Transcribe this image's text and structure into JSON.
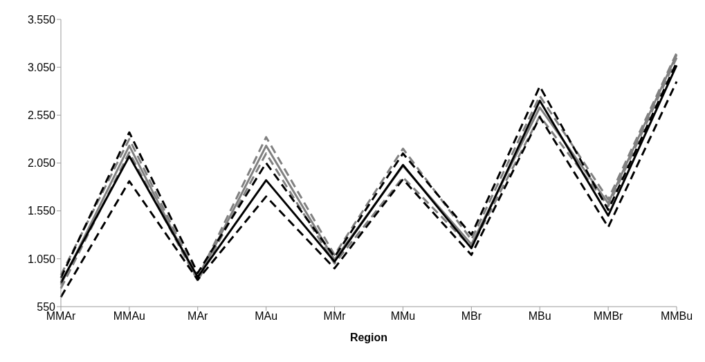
{
  "chart_data": {
    "type": "line",
    "xlabel": "Region",
    "categories": [
      "MMAr",
      "MMAu",
      "MAr",
      "MAu",
      "MMr",
      "MMu",
      "MBr",
      "MBu",
      "MMBr",
      "MMBu"
    ],
    "series": [
      {
        "color": "#808080",
        "line_style": "dashed",
        "values": [
          880,
          2300,
          850,
          2320,
          1090,
          2200,
          1250,
          2750,
          1670,
          3200
        ]
      },
      {
        "color": "#808080",
        "line_style": "solid",
        "values": [
          780,
          2230,
          830,
          2230,
          1040,
          2020,
          1200,
          2630,
          1630,
          3180
        ]
      },
      {
        "color": "#808080",
        "line_style": "dashed",
        "values": [
          740,
          2160,
          820,
          2150,
          1000,
          1900,
          1170,
          2540,
          1600,
          3150
        ]
      },
      {
        "color": "#000000",
        "line_style": "dashed",
        "values": [
          850,
          2370,
          900,
          2050,
          1070,
          2150,
          1300,
          2850,
          1560,
          3100
        ]
      },
      {
        "color": "#000000",
        "line_style": "solid",
        "values": [
          800,
          2120,
          860,
          1870,
          1020,
          2030,
          1160,
          2700,
          1500,
          3070
        ]
      },
      {
        "color": "#000000",
        "line_style": "dashed",
        "values": [
          650,
          1860,
          830,
          1700,
          950,
          1880,
          1090,
          2530,
          1380,
          2900
        ]
      }
    ],
    "ylim": [
      550,
      3550
    ],
    "yticks": [
      550,
      {
        "value": 1050,
        "label": "1.050"
      },
      {
        "value": 1550,
        "label": "1.550"
      },
      {
        "value": 2050,
        "label": "2.050"
      },
      {
        "value": 2550,
        "label": "2.550"
      },
      {
        "value": 3050,
        "label": "3.050"
      },
      {
        "value": 3550,
        "label": "3.550"
      }
    ],
    "grid": false,
    "legend": false
  }
}
